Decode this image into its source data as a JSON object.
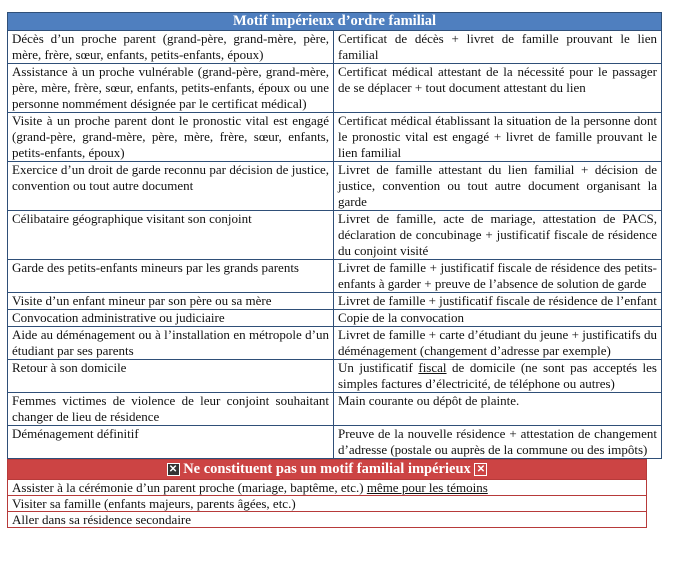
{
  "familial": {
    "title": "Motif impérieux d’ordre familial",
    "rows": [
      {
        "motif": "Décès d’un proche parent (grand-père, grand-mère, père, mère, frère, sœur, enfants, petits-enfants, époux)",
        "docs_before": "Certificat de décès + livret de famille prouvant le lien familial",
        "docs_u": "",
        "docs_after": ""
      },
      {
        "motif": "Assistance à un proche vulnérable (grand-père, grand-mère, père, mère, frère, sœur, enfants, petits-enfants, époux ou une personne nommément désignée par le certificat médical)",
        "docs_before": "Certificat médical attestant de la nécessité pour le passager de se déplacer  + tout document attestant du lien",
        "docs_u": "",
        "docs_after": ""
      },
      {
        "motif": "Visite à un proche parent dont le pronostic vital est engagé (grand-père, grand-mère, père, mère, frère, sœur, enfants, petits-enfants, époux)",
        "docs_before": "Certificat médical établissant la situation de la personne dont le pronostic vital est engagé + livret de famille prouvant le lien familial",
        "docs_u": "",
        "docs_after": ""
      },
      {
        "motif": "Exercice d’un droit de garde reconnu par décision de justice, convention ou tout autre document",
        "docs_before": "Livret de famille attestant du lien familial + décision de justice, convention ou tout autre document organisant la garde",
        "docs_u": "",
        "docs_after": ""
      },
      {
        "motif": "Célibataire géographique visitant son conjoint",
        "docs_before": "Livret de famille, acte de mariage, attestation de PACS, déclaration de concubinage + justificatif fiscale de résidence du conjoint visité",
        "docs_u": "",
        "docs_after": ""
      },
      {
        "motif": "Garde des petits-enfants mineurs par les grands parents",
        "docs_before": "Livret de famille + justificatif fiscale de résidence des petits-enfants à garder + preuve de l’absence de solution de garde",
        "docs_u": "",
        "docs_after": ""
      },
      {
        "motif": "Visite d’un enfant mineur par son père ou sa mère",
        "docs_before": "Livret de famille + justificatif fiscale de résidence de l’enfant",
        "docs_u": "",
        "docs_after": ""
      },
      {
        "motif": "Convocation administrative ou judiciaire",
        "docs_before": "Copie de la convocation",
        "docs_u": "",
        "docs_after": ""
      },
      {
        "motif": "Aide au déménagement ou à l’installation en métropole d’un étudiant par ses parents",
        "docs_before": "Livret de famille + carte d’étudiant du jeune + justificatifs du déménagement (changement d’adresse par exemple)",
        "docs_u": "",
        "docs_after": ""
      },
      {
        "motif": "Retour à son domicile",
        "docs_before": "Un justificatif ",
        "docs_u": "fiscal",
        "docs_after": " de domicile (ne sont pas acceptés les simples factures d’électricité, de téléphone ou autres)"
      },
      {
        "motif": "Femmes victimes de violence de leur conjoint souhaitant changer de lieu de résidence",
        "docs_before": "Main courante ou dépôt de plainte.",
        "docs_u": "",
        "docs_after": ""
      },
      {
        "motif": "Déménagement définitif",
        "docs_before": "Preuve de la nouvelle résidence + attestation de changement d’adresse (postale ou auprès de la commune ou des impôts)",
        "docs_u": "",
        "docs_after": ""
      }
    ]
  },
  "non_familial": {
    "title": "Ne constituent pas un motif familial impérieux",
    "box_glyph": "✕",
    "rows": [
      {
        "before": "Assister à la cérémonie d’un parent proche (mariage, baptême, etc.) ",
        "u": "même pour les témoins"
      },
      {
        "before": "Visiter sa famille (enfants majeurs, parents âgées, etc.)",
        "u": ""
      },
      {
        "before": "Aller dans sa résidence secondaire",
        "u": ""
      }
    ]
  },
  "colors": {
    "blue_header": "#4f7fbf",
    "red_header": "#cc4444"
  }
}
